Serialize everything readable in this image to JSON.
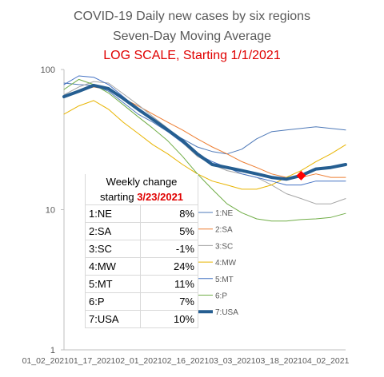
{
  "chart_data": {
    "type": "line",
    "title": "COVID-19 Daily new cases by six regions",
    "subtitle": "Seven-Day Moving Average",
    "subtitle2": "LOG SCALE, Starting 1/1/2021",
    "xlabel": "",
    "ylabel": "",
    "yscale": "log",
    "ylim": [
      1,
      100
    ],
    "ytick_labels": [
      "100",
      "10",
      "1"
    ],
    "yticks": [
      100,
      10,
      1
    ],
    "x_tick_labels": [
      "01_02_2021",
      "01_17_2021",
      "02_01_2021",
      "02_16_2021",
      "03_03_2021",
      "03_18_2021",
      "04_02_2021"
    ],
    "x": [
      "01_02_2021",
      "01_07_2021",
      "01_12_2021",
      "01_17_2021",
      "01_22_2021",
      "01_27_2021",
      "02_01_2021",
      "02_06_2021",
      "02_11_2021",
      "02_16_2021",
      "02_21_2021",
      "02_26_2021",
      "03_03_2021",
      "03_08_2021",
      "03_13_2021",
      "03_18_2021",
      "03_23_2021",
      "03_28_2021",
      "04_02_2021",
      "04_07_2021"
    ],
    "grid": false,
    "legend_position": "right",
    "series": [
      {
        "name": "1:NE",
        "color": "#4e79b8",
        "width": 1,
        "values": [
          80,
          78,
          77,
          70,
          58,
          48,
          42,
          36,
          32,
          28,
          26,
          25,
          27,
          32,
          36,
          37,
          38,
          39,
          38,
          37
        ]
      },
      {
        "name": "2:SA",
        "color": "#ed7d31",
        "width": 1,
        "values": [
          65,
          70,
          75,
          72,
          62,
          55,
          48,
          42,
          37,
          32,
          28,
          25,
          22,
          20,
          18,
          17,
          17,
          18,
          17,
          17
        ]
      },
      {
        "name": "3:SC",
        "color": "#a5a5a5",
        "width": 1,
        "values": [
          66,
          75,
          82,
          80,
          67,
          56,
          46,
          38,
          30,
          24,
          21,
          19,
          18,
          17,
          15,
          13,
          12,
          11,
          11,
          12
        ]
      },
      {
        "name": "4:MW",
        "color": "#e8b400",
        "width": 1,
        "values": [
          48,
          55,
          60,
          52,
          42,
          35,
          29,
          25,
          21,
          18,
          16,
          15,
          14,
          14,
          15,
          17,
          19,
          22,
          25,
          29
        ]
      },
      {
        "name": "5:MT",
        "color": "#4472c4",
        "width": 1,
        "values": [
          78,
          90,
          88,
          78,
          64,
          52,
          44,
          36,
          30,
          25,
          22,
          20,
          18,
          17,
          16,
          15,
          15,
          16,
          16,
          16
        ]
      },
      {
        "name": "6:P",
        "color": "#70ad47",
        "width": 1,
        "values": [
          72,
          85,
          78,
          68,
          56,
          46,
          38,
          31,
          24,
          18,
          14,
          11,
          9.5,
          8.6,
          8.3,
          8.3,
          8.5,
          8.6,
          8.8,
          9.4
        ]
      },
      {
        "name": "7:USA",
        "color": "#255e91",
        "width": 4,
        "values": [
          64,
          70,
          77,
          73,
          62,
          52,
          44,
          37,
          31,
          25,
          21,
          20,
          19,
          18,
          17,
          16.5,
          17.5,
          19.5,
          20,
          21
        ]
      }
    ],
    "marker": {
      "series": "7:USA",
      "date": "03_23_2021",
      "color": "#ff0000"
    }
  },
  "titles": {
    "line1": "COVID-19 Daily new cases by six regions",
    "line2": "Seven-Day Moving Average",
    "line3": "LOG SCALE, Starting 1/1/2021"
  },
  "weekly_table": {
    "header1": "Weekly change",
    "header2_prefix": "starting ",
    "header2_date": "3/23/2021",
    "rows": [
      {
        "label": "1:NE",
        "value": "8%"
      },
      {
        "label": "2:SA",
        "value": "5%"
      },
      {
        "label": "3:SC",
        "value": "-1%"
      },
      {
        "label": "4:MW",
        "value": "24%"
      },
      {
        "label": "5:MT",
        "value": "11%"
      },
      {
        "label": "6:P",
        "value": "7%"
      },
      {
        "label": "7:USA",
        "value": "10%"
      }
    ]
  }
}
